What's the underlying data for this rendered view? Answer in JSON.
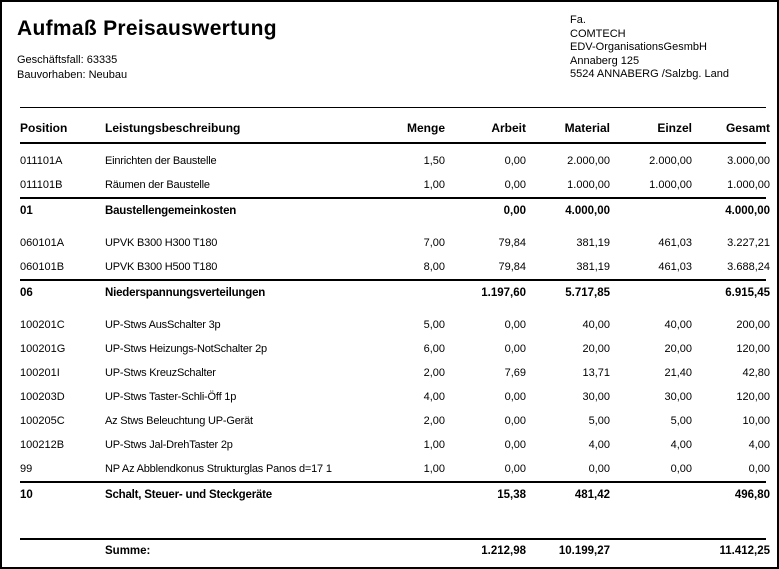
{
  "header": {
    "title": "Aufmaß Preisauswertung",
    "meta": [
      {
        "label": "Geschäftsfall:",
        "value": "63335"
      },
      {
        "label": "Bauvorhaben:",
        "value": "Neubau"
      }
    ],
    "company_lines": [
      "Fa.",
      "COMTECH",
      "EDV-OrganisationsGesmbH",
      "Annaberg 125",
      "5524 ANNABERG /Salzbg. Land"
    ]
  },
  "table": {
    "columns": [
      "Position",
      "Leistungsbeschreibung",
      "Menge",
      "Arbeit",
      "Material",
      "Einzel",
      "Gesamt"
    ],
    "rows": [
      {
        "type": "item",
        "position": "011101A",
        "description": "Einrichten der Baustelle",
        "menge": "1,50",
        "arbeit": "0,00",
        "material": "2.000,00",
        "einzel": "2.000,00",
        "gesamt": "3.000,00"
      },
      {
        "type": "item",
        "position": "011101B",
        "description": "Räumen der Baustelle",
        "menge": "1,00",
        "arbeit": "0,00",
        "material": "1.000,00",
        "einzel": "1.000,00",
        "gesamt": "1.000,00"
      },
      {
        "type": "subtotal",
        "position": "01",
        "description": "Baustellengemeinkosten",
        "menge": "",
        "arbeit": "0,00",
        "material": "4.000,00",
        "einzel": "",
        "gesamt": "4.000,00"
      },
      {
        "type": "item",
        "position": "060101A",
        "description": "UPVK B300 H300 T180",
        "menge": "7,00",
        "arbeit": "79,84",
        "material": "381,19",
        "einzel": "461,03",
        "gesamt": "3.227,21"
      },
      {
        "type": "item",
        "position": "060101B",
        "description": "UPVK B300 H500 T180",
        "menge": "8,00",
        "arbeit": "79,84",
        "material": "381,19",
        "einzel": "461,03",
        "gesamt": "3.688,24"
      },
      {
        "type": "subtotal",
        "position": "06",
        "description": "Niederspannungsverteilungen",
        "menge": "",
        "arbeit": "1.197,60",
        "material": "5.717,85",
        "einzel": "",
        "gesamt": "6.915,45"
      },
      {
        "type": "item",
        "position": "100201C",
        "description": "UP-Stws AusSchalter 3p",
        "menge": "5,00",
        "arbeit": "0,00",
        "material": "40,00",
        "einzel": "40,00",
        "gesamt": "200,00"
      },
      {
        "type": "item",
        "position": "100201G",
        "description": "UP-Stws Heizungs-NotSchalter 2p",
        "menge": "6,00",
        "arbeit": "0,00",
        "material": "20,00",
        "einzel": "20,00",
        "gesamt": "120,00"
      },
      {
        "type": "item",
        "position": "100201I",
        "description": "UP-Stws KreuzSchalter",
        "menge": "2,00",
        "arbeit": "7,69",
        "material": "13,71",
        "einzel": "21,40",
        "gesamt": "42,80"
      },
      {
        "type": "item",
        "position": "100203D",
        "description": "UP-Stws Taster-Schli-Öff 1p",
        "menge": "4,00",
        "arbeit": "0,00",
        "material": "30,00",
        "einzel": "30,00",
        "gesamt": "120,00"
      },
      {
        "type": "item",
        "position": "100205C",
        "description": "Az Stws Beleuchtung UP-Gerät",
        "menge": "2,00",
        "arbeit": "0,00",
        "material": "5,00",
        "einzel": "5,00",
        "gesamt": "10,00"
      },
      {
        "type": "item",
        "position": "100212B",
        "description": "UP-Stws Jal-DrehTaster 2p",
        "menge": "1,00",
        "arbeit": "0,00",
        "material": "4,00",
        "einzel": "4,00",
        "gesamt": "4,00"
      },
      {
        "type": "item",
        "position": "99",
        "description": "NP Az Abblendkonus Strukturglas Panos d=17 1",
        "menge": "1,00",
        "arbeit": "0,00",
        "material": "0,00",
        "einzel": "0,00",
        "gesamt": "0,00"
      },
      {
        "type": "subtotal",
        "position": "10",
        "description": "Schalt, Steuer- und Steckgeräte",
        "menge": "",
        "arbeit": "15,38",
        "material": "481,42",
        "einzel": "",
        "gesamt": "496,80"
      }
    ]
  },
  "summary": {
    "label": "Summe:",
    "arbeit": "1.212,98",
    "material": "10.199,27",
    "gesamt": "11.412,25"
  },
  "colors": {
    "text": "#000000",
    "background": "#ffffff",
    "border": "#000000"
  }
}
